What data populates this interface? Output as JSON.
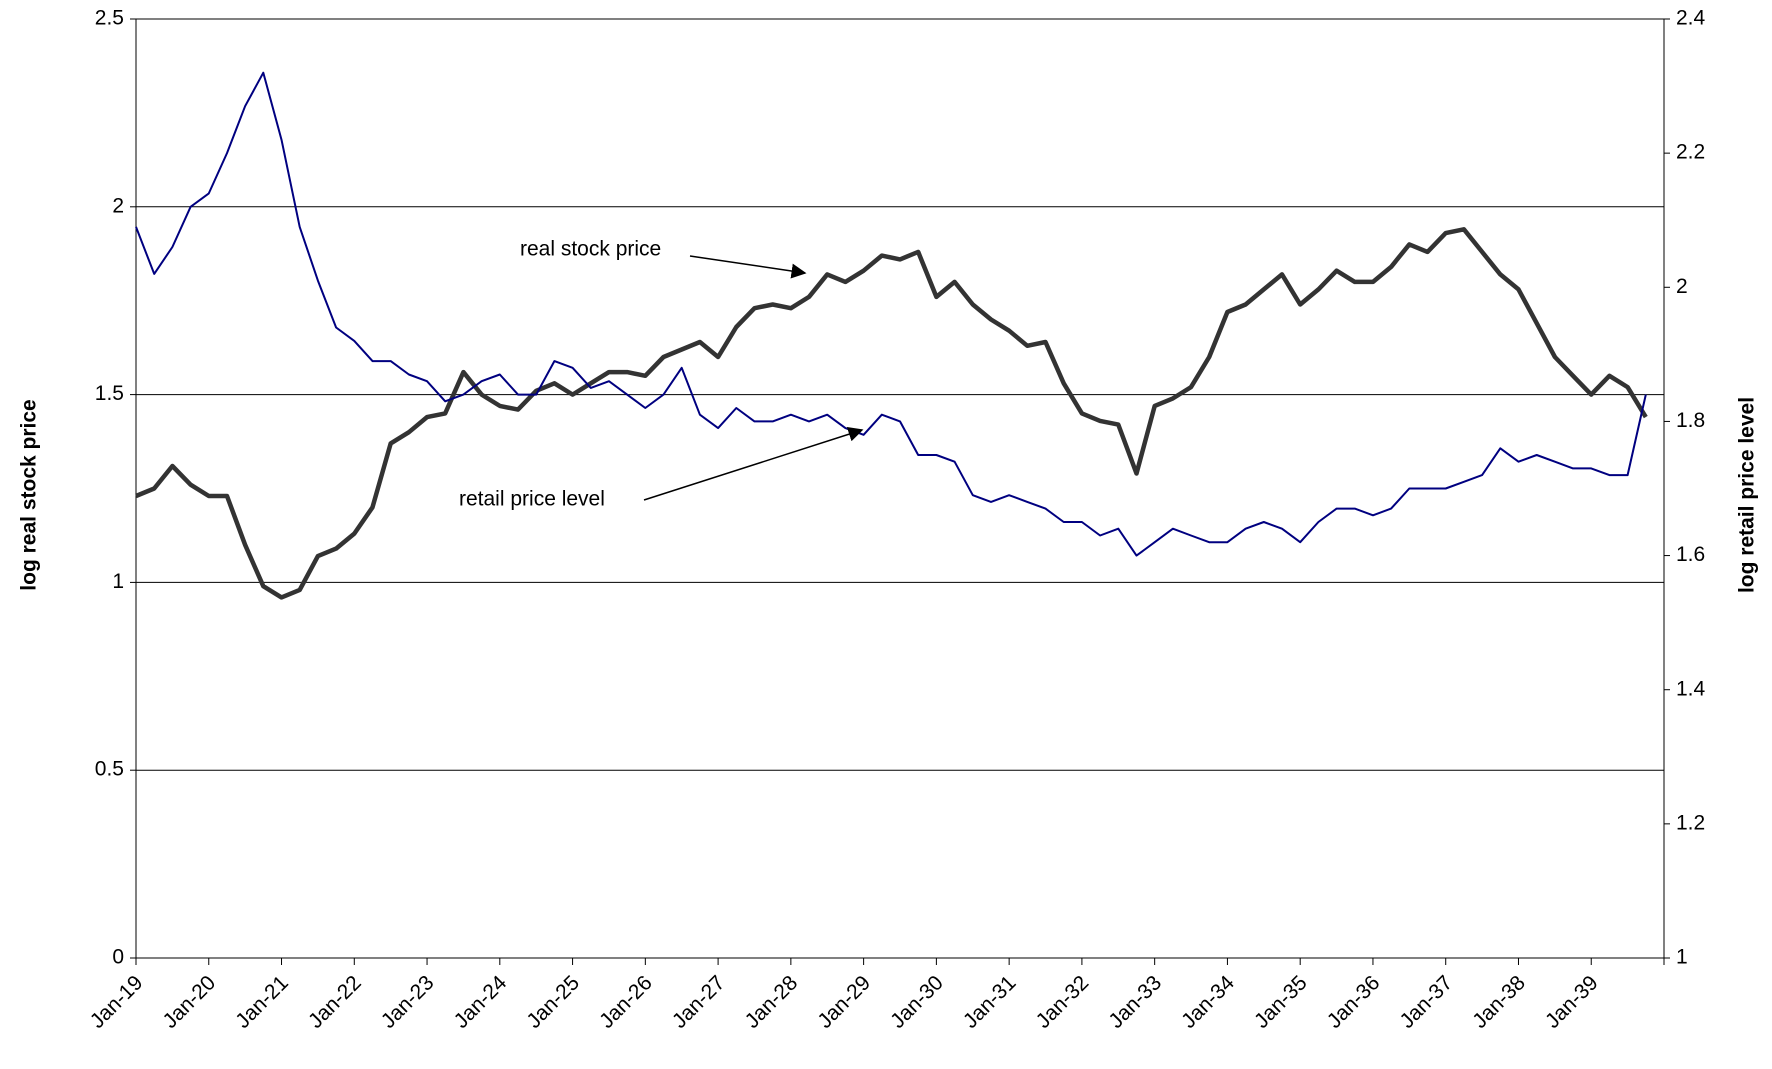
{
  "chart_data": {
    "type": "line",
    "categories": [
      "Jan-19",
      null,
      null,
      null,
      "Jan-20",
      null,
      null,
      null,
      "Jan-21",
      null,
      null,
      null,
      "Jan-22",
      null,
      null,
      null,
      "Jan-23",
      null,
      null,
      null,
      "Jan-24",
      null,
      null,
      null,
      "Jan-25",
      null,
      null,
      null,
      "Jan-26",
      null,
      null,
      null,
      "Jan-27",
      null,
      null,
      null,
      "Jan-28",
      null,
      null,
      null,
      "Jan-29",
      null,
      null,
      null,
      "Jan-30",
      null,
      null,
      null,
      "Jan-31",
      null,
      null,
      null,
      "Jan-32",
      null,
      null,
      null,
      "Jan-33",
      null,
      null,
      null,
      "Jan-34",
      null,
      null,
      null,
      "Jan-35",
      null,
      null,
      null,
      "Jan-36",
      null,
      null,
      null,
      "Jan-37",
      null,
      null,
      null,
      "Jan-38",
      null,
      null,
      null,
      "Jan-39",
      null,
      null,
      null
    ],
    "series": [
      {
        "name": "real stock price",
        "color": "#333333",
        "values": [
          1.23,
          1.25,
          1.31,
          1.26,
          1.23,
          1.23,
          1.1,
          0.99,
          0.96,
          0.98,
          1.07,
          1.09,
          1.13,
          1.2,
          1.37,
          1.4,
          1.44,
          1.45,
          1.56,
          1.5,
          1.47,
          1.46,
          1.51,
          1.53,
          1.5,
          1.53,
          1.56,
          1.56,
          1.55,
          1.6,
          1.62,
          1.64,
          1.6,
          1.68,
          1.73,
          1.74,
          1.73,
          1.76,
          1.82,
          1.8,
          1.83,
          1.87,
          1.86,
          1.88,
          1.76,
          1.8,
          1.74,
          1.7,
          1.67,
          1.63,
          1.64,
          1.53,
          1.45,
          1.43,
          1.42,
          1.29,
          1.47,
          1.49,
          1.52,
          1.6,
          1.72,
          1.74,
          1.78,
          1.82,
          1.74,
          1.78,
          1.83,
          1.8,
          1.8,
          1.84,
          1.9,
          1.88,
          1.93,
          1.94,
          1.88,
          1.82,
          1.78,
          1.69,
          1.6,
          1.55,
          1.5,
          1.55,
          1.52,
          1.44
        ]
      },
      {
        "name": "retail price level",
        "color": "#000080",
        "axis": "y2",
        "values": [
          2.09,
          2.02,
          2.06,
          2.12,
          2.14,
          2.2,
          2.27,
          2.32,
          2.22,
          2.09,
          2.01,
          1.94,
          1.92,
          1.89,
          1.89,
          1.87,
          1.86,
          1.83,
          1.84,
          1.86,
          1.87,
          1.84,
          1.84,
          1.89,
          1.88,
          1.85,
          1.86,
          1.84,
          1.82,
          1.84,
          1.88,
          1.81,
          1.79,
          1.82,
          1.8,
          1.8,
          1.81,
          1.8,
          1.81,
          1.79,
          1.78,
          1.81,
          1.8,
          1.75,
          1.75,
          1.74,
          1.69,
          1.68,
          1.69,
          1.68,
          1.67,
          1.65,
          1.65,
          1.63,
          1.64,
          1.6,
          1.62,
          1.64,
          1.63,
          1.62,
          1.62,
          1.64,
          1.65,
          1.64,
          1.62,
          1.65,
          1.67,
          1.67,
          1.66,
          1.67,
          1.7,
          1.7,
          1.7,
          1.71,
          1.72,
          1.76,
          1.74,
          1.75,
          1.74,
          1.73,
          1.73,
          1.72,
          1.72,
          1.84
        ]
      }
    ],
    "y_label": "log real stock price",
    "y2_label": "log retail price level",
    "ylim": [
      0,
      2.5
    ],
    "yticks": [
      0,
      0.5,
      1,
      1.5,
      2,
      2.5
    ],
    "y2lim": [
      1,
      2.4
    ],
    "y2ticks": [
      1,
      1.2,
      1.4,
      1.6,
      1.8,
      2,
      2.2,
      2.4
    ],
    "grid": true,
    "legend": false,
    "annotations": [
      {
        "text": "real stock price"
      },
      {
        "text": "retail price level"
      }
    ]
  }
}
